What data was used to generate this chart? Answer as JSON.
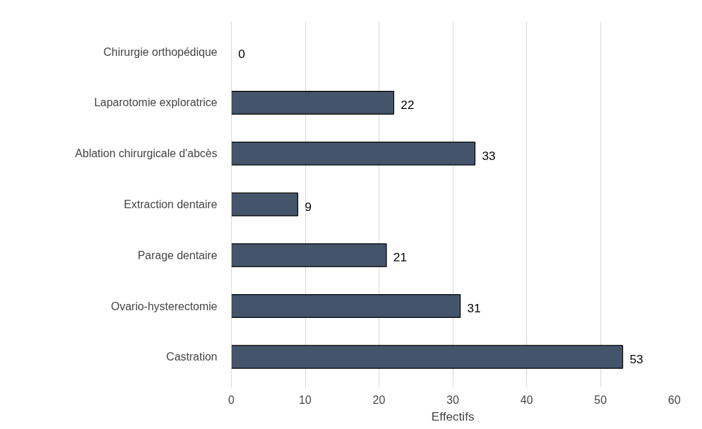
{
  "chart_data": {
    "type": "bar",
    "orientation": "horizontal",
    "categories": [
      "Chirurgie orthopédique",
      "Laparotomie exploratrice",
      "Ablation chirurgicale d'abcès",
      "Extraction dentaire",
      "Parage dentaire",
      "Ovario-hysterectomie",
      "Castration"
    ],
    "values": [
      0,
      22,
      33,
      9,
      21,
      31,
      53
    ],
    "color": "#44546a",
    "xlabel": "Effectifs",
    "xlim": [
      0,
      60
    ],
    "xticks": [
      0,
      10,
      20,
      30,
      40,
      50,
      60
    ],
    "grid": "x",
    "data_labels": true
  }
}
